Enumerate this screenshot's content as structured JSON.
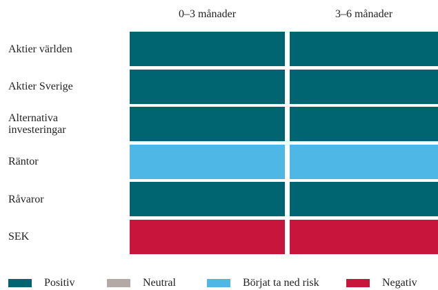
{
  "columns": [
    "0–3 månader",
    "3–6 månader"
  ],
  "rows": [
    {
      "label": "Aktier världen",
      "values": [
        "Positiv",
        "Positiv"
      ]
    },
    {
      "label": "Aktier Sverige",
      "values": [
        "Positiv",
        "Positiv"
      ]
    },
    {
      "label": "Alternativa\ninvesteringar",
      "values": [
        "Positiv",
        "Positiv"
      ]
    },
    {
      "label": "Räntor",
      "values": [
        "Börjat ta ned risk",
        "Börjat ta ned risk"
      ]
    },
    {
      "label": "Råvaror",
      "values": [
        "Positiv",
        "Positiv"
      ]
    },
    {
      "label": "SEK",
      "values": [
        "Negativ",
        "Negativ"
      ]
    }
  ],
  "legend": [
    {
      "label": "Positiv",
      "color": "#006570"
    },
    {
      "label": "Neutral",
      "color": "#b3aaa6"
    },
    {
      "label": "Börjat ta ned risk",
      "color": "#4fb7e6"
    },
    {
      "label": "Negativ",
      "color": "#c8153c"
    }
  ]
}
